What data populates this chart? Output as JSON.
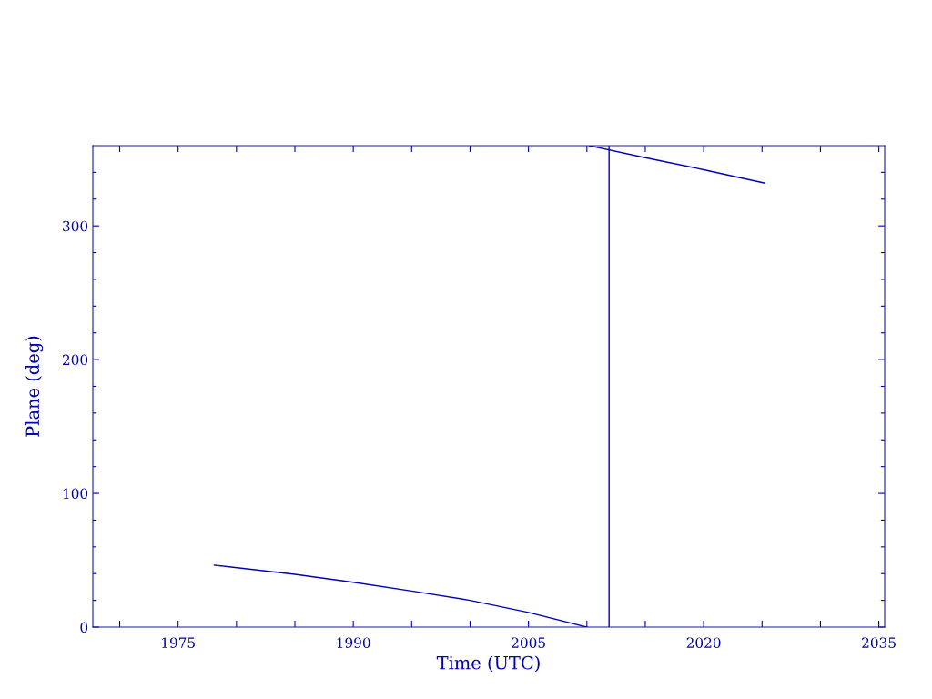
{
  "chart_data": {
    "type": "line",
    "xlabel": "Time (UTC)",
    "ylabel": "Plane (deg)",
    "xlim": [
      1967.7,
      2035.5
    ],
    "ylim": [
      0,
      360
    ],
    "xticks": [
      {
        "value": 1970,
        "label": null
      },
      1975,
      {
        "value": 1980,
        "label": null
      },
      {
        "value": 1985,
        "label": null
      },
      1990,
      {
        "value": 1995,
        "label": null
      },
      {
        "value": 2000,
        "label": null
      },
      2005,
      {
        "value": 2010,
        "label": null
      },
      {
        "value": 2015,
        "label": null
      },
      2020,
      {
        "value": 2025,
        "label": null
      },
      {
        "value": 2030,
        "label": null
      },
      2035
    ],
    "yticks": [
      0,
      {
        "value": 20,
        "label": null
      },
      {
        "value": 40,
        "label": null
      },
      {
        "value": 60,
        "label": null
      },
      {
        "value": 80,
        "label": null
      },
      100,
      {
        "value": 120,
        "label": null
      },
      {
        "value": 140,
        "label": null
      },
      {
        "value": 160,
        "label": null
      },
      {
        "value": 180,
        "label": null
      },
      200,
      {
        "value": 220,
        "label": null
      },
      {
        "value": 240,
        "label": null
      },
      {
        "value": 260,
        "label": null
      },
      {
        "value": 280,
        "label": null
      },
      300,
      {
        "value": 320,
        "label": null
      },
      {
        "value": 340,
        "label": null
      }
    ],
    "series": [
      {
        "color": "#0000b4",
        "x": [
          1978.1,
          1985,
          1990,
          1995,
          2000,
          2005,
          2010.0
        ],
        "values": [
          46.3,
          39.5,
          33.5,
          27,
          20,
          11,
          0
        ]
      },
      {
        "color": "#0000b4",
        "x": [
          2010.2,
          2015,
          2020,
          2025.2
        ],
        "values": [
          360,
          351,
          342,
          332
        ]
      }
    ],
    "ref_lines": [
      {
        "axis": "x",
        "value": 2011.9,
        "color": "#0000b4"
      }
    ],
    "grid": false
  }
}
